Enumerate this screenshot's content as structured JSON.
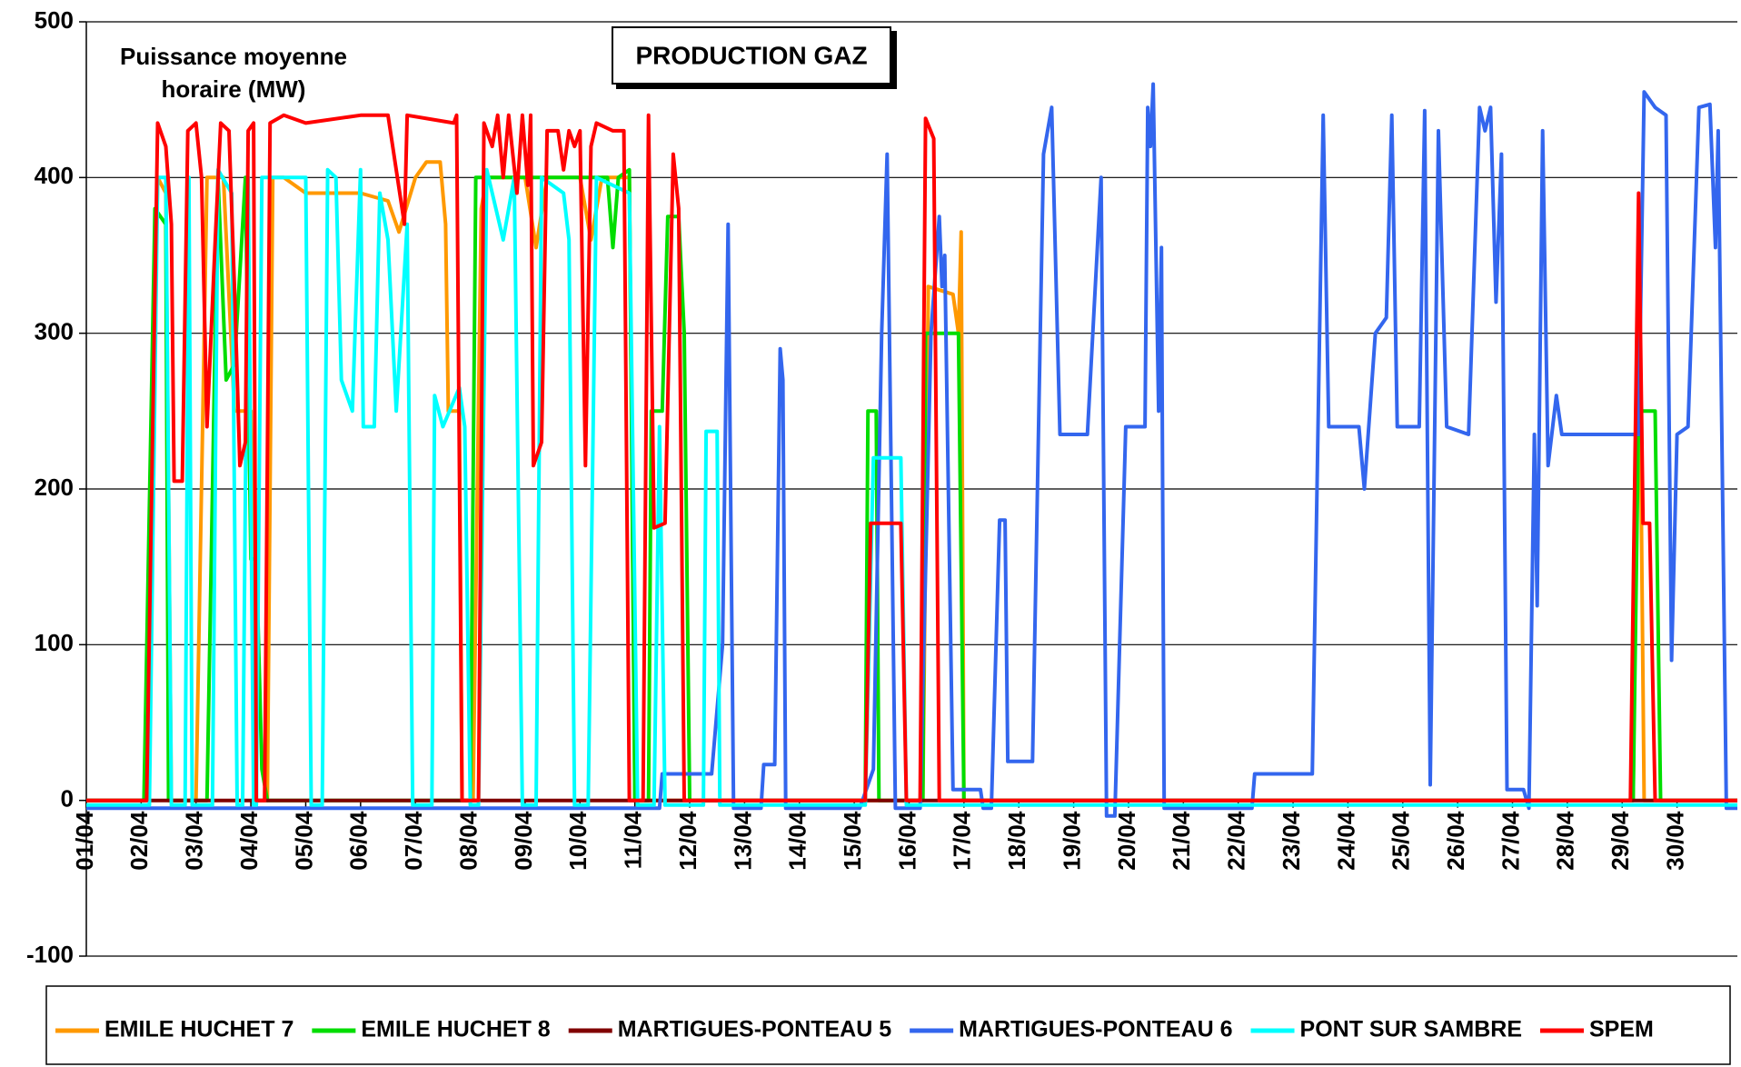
{
  "chart_data": {
    "type": "line",
    "title": "PRODUCTION GAZ",
    "annotation": "Puissance moyenne horaire (MW)",
    "xlim": [
      0,
      30.1
    ],
    "xticks": [
      {
        "value": 0,
        "label": "01/04"
      },
      {
        "value": 1,
        "label": "02/04"
      },
      {
        "value": 2,
        "label": "03/04"
      },
      {
        "value": 3,
        "label": "04/04"
      },
      {
        "value": 4,
        "label": "05/04"
      },
      {
        "value": 5,
        "label": "06/04"
      },
      {
        "value": 6,
        "label": "07/04"
      },
      {
        "value": 7,
        "label": "08/04"
      },
      {
        "value": 8,
        "label": "09/04"
      },
      {
        "value": 9,
        "label": "10/04"
      },
      {
        "value": 10,
        "label": "11/04"
      },
      {
        "value": 11,
        "label": "12/04"
      },
      {
        "value": 12,
        "label": "13/04"
      },
      {
        "value": 13,
        "label": "14/04"
      },
      {
        "value": 14,
        "label": "15/04"
      },
      {
        "value": 15,
        "label": "16/04"
      },
      {
        "value": 16,
        "label": "17/04"
      },
      {
        "value": 17,
        "label": "18/04"
      },
      {
        "value": 18,
        "label": "19/04"
      },
      {
        "value": 19,
        "label": "20/04"
      },
      {
        "value": 20,
        "label": "21/04"
      },
      {
        "value": 21,
        "label": "22/04"
      },
      {
        "value": 22,
        "label": "23/04"
      },
      {
        "value": 23,
        "label": "24/04"
      },
      {
        "value": 24,
        "label": "25/04"
      },
      {
        "value": 25,
        "label": "26/04"
      },
      {
        "value": 26,
        "label": "27/04"
      },
      {
        "value": 27,
        "label": "28/04"
      },
      {
        "value": 28,
        "label": "29/04"
      },
      {
        "value": 29,
        "label": "30/04"
      }
    ],
    "ylim": [
      -100,
      500
    ],
    "yticks": [
      -100,
      0,
      100,
      200,
      300,
      400,
      500
    ],
    "grid": true,
    "legend": "bottom",
    "series": [
      {
        "name": "EMILE HUCHET 7",
        "color": "#ff9900",
        "x": [
          0,
          1.1,
          1.3,
          1.45,
          1.55,
          2.0,
          2.2,
          2.5,
          2.7,
          3.0,
          3.1,
          3.3,
          3.4,
          3.6,
          4.0,
          5.0,
          5.5,
          5.7,
          6.0,
          6.2,
          6.45,
          6.55,
          6.6,
          6.8,
          6.85,
          7.05,
          7.2,
          7.3,
          8.0,
          8.2,
          8.4,
          9.0,
          9.2,
          9.4,
          9.9,
          10.0,
          15.25,
          15.35,
          15.8,
          15.9,
          15.95,
          16.0,
          28.2,
          28.3,
          28.4,
          30.1
        ],
        "values": [
          0,
          0,
          400,
          390,
          0,
          0,
          400,
          400,
          250,
          250,
          0,
          0,
          400,
          400,
          390,
          390,
          385,
          365,
          400,
          410,
          410,
          370,
          250,
          250,
          0,
          0,
          380,
          400,
          400,
          355,
          400,
          400,
          360,
          400,
          400,
          0,
          0,
          330,
          325,
          300,
          365,
          0,
          0,
          365,
          0,
          0
        ]
      },
      {
        "name": "EMILE HUCHET 8",
        "color": "#00dd00",
        "x": [
          0,
          1.05,
          1.25,
          1.45,
          1.5,
          2.2,
          2.4,
          2.55,
          2.7,
          2.9,
          3.0,
          3.1,
          3.2,
          3.3,
          7.0,
          7.1,
          9.5,
          9.6,
          9.7,
          9.9,
          10.0,
          10.25,
          10.3,
          10.5,
          10.6,
          10.8,
          10.9,
          11.0,
          14.2,
          14.25,
          14.4,
          14.45,
          15.25,
          15.3,
          15.9,
          16.0,
          28.2,
          28.3,
          28.6,
          28.7,
          30.1
        ],
        "values": [
          0,
          0,
          380,
          370,
          0,
          0,
          400,
          270,
          280,
          400,
          155,
          155,
          20,
          0,
          0,
          400,
          400,
          355,
          400,
          405,
          0,
          0,
          250,
          250,
          375,
          375,
          300,
          0,
          0,
          250,
          250,
          0,
          0,
          300,
          300,
          0,
          0,
          250,
          250,
          0,
          0
        ]
      },
      {
        "name": "MARTIGUES-PONTEAU 5",
        "color": "#800000",
        "x": [
          0,
          30.1
        ],
        "values": [
          0,
          0
        ]
      },
      {
        "name": "MARTIGUES-PONTEAU 6",
        "color": "#3366ee",
        "x": [
          0,
          10.45,
          10.5,
          11.4,
          11.6,
          11.7,
          11.8,
          12.3,
          12.35,
          12.55,
          12.65,
          12.7,
          12.75,
          14.1,
          14.35,
          14.5,
          14.6,
          14.75,
          15.2,
          15.4,
          15.55,
          15.6,
          15.65,
          15.8,
          16.3,
          16.35,
          16.5,
          16.65,
          16.75,
          16.8,
          17.25,
          17.45,
          17.6,
          17.75,
          18.25,
          18.5,
          18.6,
          18.75,
          18.95,
          19.3,
          19.35,
          19.4,
          19.45,
          19.55,
          19.6,
          19.65,
          21.25,
          21.3,
          22.35,
          22.55,
          22.65,
          23.2,
          23.3,
          23.5,
          23.7,
          23.8,
          23.9,
          24.3,
          24.4,
          24.5,
          24.65,
          24.8,
          25.2,
          25.4,
          25.5,
          25.6,
          25.7,
          25.8,
          25.9,
          26.2,
          26.3,
          26.4,
          26.45,
          26.55,
          26.65,
          26.8,
          26.9,
          28.3,
          28.4,
          28.6,
          28.8,
          28.9,
          29.0,
          29.2,
          29.4,
          29.6,
          29.7,
          29.75,
          29.9,
          30.1
        ],
        "values": [
          -5,
          -5,
          17,
          17,
          100,
          370,
          -5,
          -5,
          23,
          23,
          290,
          270,
          -5,
          -5,
          20,
          300,
          415,
          -5,
          -5,
          300,
          375,
          330,
          350,
          7,
          7,
          -5,
          -5,
          180,
          180,
          25,
          25,
          415,
          445,
          235,
          235,
          400,
          -10,
          -10,
          240,
          240,
          445,
          420,
          460,
          250,
          355,
          -5,
          -5,
          17,
          17,
          440,
          240,
          240,
          200,
          300,
          310,
          440,
          240,
          240,
          443,
          10,
          430,
          240,
          235,
          445,
          430,
          445,
          320,
          415,
          7,
          7,
          -5,
          235,
          125,
          430,
          215,
          260,
          235,
          235,
          455,
          445,
          440,
          90,
          235,
          240,
          445,
          447,
          355,
          430,
          -5,
          -5
        ]
      },
      {
        "name": "PONT SUR SAMBRE",
        "color": "#00ffff",
        "x": [
          0,
          1.15,
          1.3,
          1.45,
          1.55,
          1.8,
          1.87,
          1.93,
          2.3,
          2.4,
          2.65,
          2.75,
          2.85,
          2.95,
          3.05,
          3.1,
          3.2,
          4.0,
          4.1,
          4.3,
          4.4,
          4.55,
          4.65,
          4.85,
          5.0,
          5.05,
          5.25,
          5.35,
          5.5,
          5.65,
          5.85,
          5.95,
          6.3,
          6.35,
          6.5,
          6.8,
          6.9,
          7.0,
          7.15,
          7.3,
          7.6,
          7.8,
          7.95,
          8.2,
          8.3,
          8.7,
          8.8,
          8.9,
          9.15,
          9.3,
          9.9,
          10.05,
          10.35,
          10.45,
          10.55,
          11.25,
          11.3,
          11.5,
          11.55,
          14.2,
          14.35,
          14.85,
          14.95,
          30.1
        ],
        "values": [
          -3,
          -3,
          400,
          400,
          -3,
          -3,
          400,
          -3,
          -3,
          405,
          390,
          -3,
          -3,
          400,
          -3,
          -3,
          400,
          400,
          -3,
          -3,
          405,
          400,
          270,
          250,
          405,
          240,
          240,
          390,
          360,
          250,
          370,
          -3,
          -3,
          260,
          240,
          265,
          240,
          -3,
          -3,
          405,
          360,
          400,
          -3,
          -3,
          400,
          390,
          360,
          -3,
          -3,
          400,
          390,
          -3,
          -3,
          240,
          -3,
          -3,
          237,
          237,
          -3,
          -3,
          220,
          220,
          -3,
          -3
        ]
      },
      {
        "name": "SPEM",
        "color": "#ff0000",
        "x": [
          0,
          1.1,
          1.3,
          1.45,
          1.55,
          1.6,
          1.75,
          1.85,
          2.0,
          2.1,
          2.2,
          2.35,
          2.45,
          2.6,
          2.7,
          2.8,
          2.9,
          2.95,
          3.05,
          3.1,
          3.25,
          3.35,
          3.6,
          4.0,
          5.0,
          5.5,
          5.8,
          5.85,
          6.7,
          6.75,
          6.85,
          7.15,
          7.25,
          7.4,
          7.5,
          7.6,
          7.7,
          7.85,
          7.95,
          8.05,
          8.1,
          8.15,
          8.3,
          8.4,
          8.6,
          8.7,
          8.8,
          8.9,
          9.0,
          9.1,
          9.2,
          9.3,
          9.6,
          9.8,
          9.9,
          10.15,
          10.25,
          10.35,
          10.55,
          10.7,
          10.8,
          10.9,
          14.2,
          14.3,
          14.85,
          14.95,
          15.2,
          15.3,
          15.45,
          15.55,
          28.15,
          28.3,
          28.38,
          28.5,
          28.6,
          30.1
        ],
        "values": [
          0,
          0,
          435,
          420,
          370,
          205,
          205,
          430,
          435,
          400,
          240,
          360,
          435,
          430,
          330,
          215,
          230,
          430,
          435,
          0,
          0,
          435,
          440,
          435,
          440,
          440,
          370,
          440,
          435,
          440,
          0,
          0,
          435,
          420,
          440,
          400,
          440,
          390,
          440,
          395,
          440,
          215,
          230,
          430,
          430,
          405,
          430,
          420,
          430,
          215,
          420,
          435,
          430,
          430,
          0,
          0,
          440,
          175,
          178,
          415,
          380,
          0,
          0,
          178,
          178,
          0,
          0,
          438,
          425,
          0,
          0,
          390,
          178,
          178,
          0,
          0
        ]
      }
    ]
  }
}
